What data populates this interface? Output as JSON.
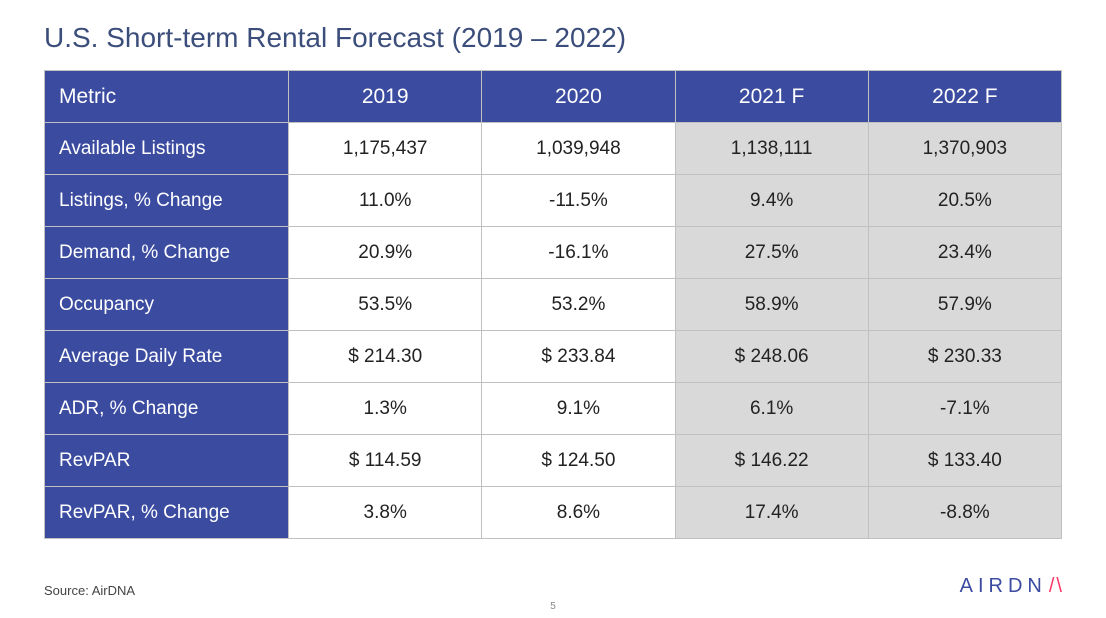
{
  "title": "U.S. Short-term Rental Forecast (2019 – 2022)",
  "table": {
    "headers": [
      "Metric",
      "2019",
      "2020",
      "2021 F",
      "2022 F"
    ],
    "forecast_cols": [
      false,
      false,
      true,
      true
    ],
    "rows": [
      {
        "label": "Available Listings",
        "cells": [
          "1,175,437",
          "1,039,948",
          "1,138,111",
          "1,370,903"
        ]
      },
      {
        "label": "Listings, % Change",
        "cells": [
          "11.0%",
          "-11.5%",
          "9.4%",
          "20.5%"
        ]
      },
      {
        "label": "Demand, % Change",
        "cells": [
          "20.9%",
          "-16.1%",
          "27.5%",
          "23.4%"
        ]
      },
      {
        "label": "Occupancy",
        "cells": [
          "53.5%",
          "53.2%",
          "58.9%",
          "57.9%"
        ]
      },
      {
        "label": "Average Daily Rate",
        "cells": [
          "$ 214.30",
          "$ 233.84",
          "$ 248.06",
          "$ 230.33"
        ]
      },
      {
        "label": "ADR, % Change",
        "cells": [
          "1.3%",
          "9.1%",
          "6.1%",
          "-7.1%"
        ]
      },
      {
        "label": "RevPAR",
        "cells": [
          "$ 114.59",
          "$ 124.50",
          "$ 146.22",
          "$ 133.40"
        ]
      },
      {
        "label": "RevPAR, % Change",
        "cells": [
          "3.8%",
          "8.6%",
          "17.4%",
          "-8.8%"
        ]
      }
    ]
  },
  "colors": {
    "header_bg": "#3b4ba0",
    "header_text": "#ffffff",
    "forecast_bg": "#d9d9d9",
    "actual_bg": "#ffffff",
    "border": "#c0c0c0",
    "title_color": "#3b4d7a"
  },
  "footer": {
    "source": "Source: AirDNA",
    "logo_part1": "AIRDN",
    "logo_slash": "/\\",
    "page_number": "5"
  }
}
